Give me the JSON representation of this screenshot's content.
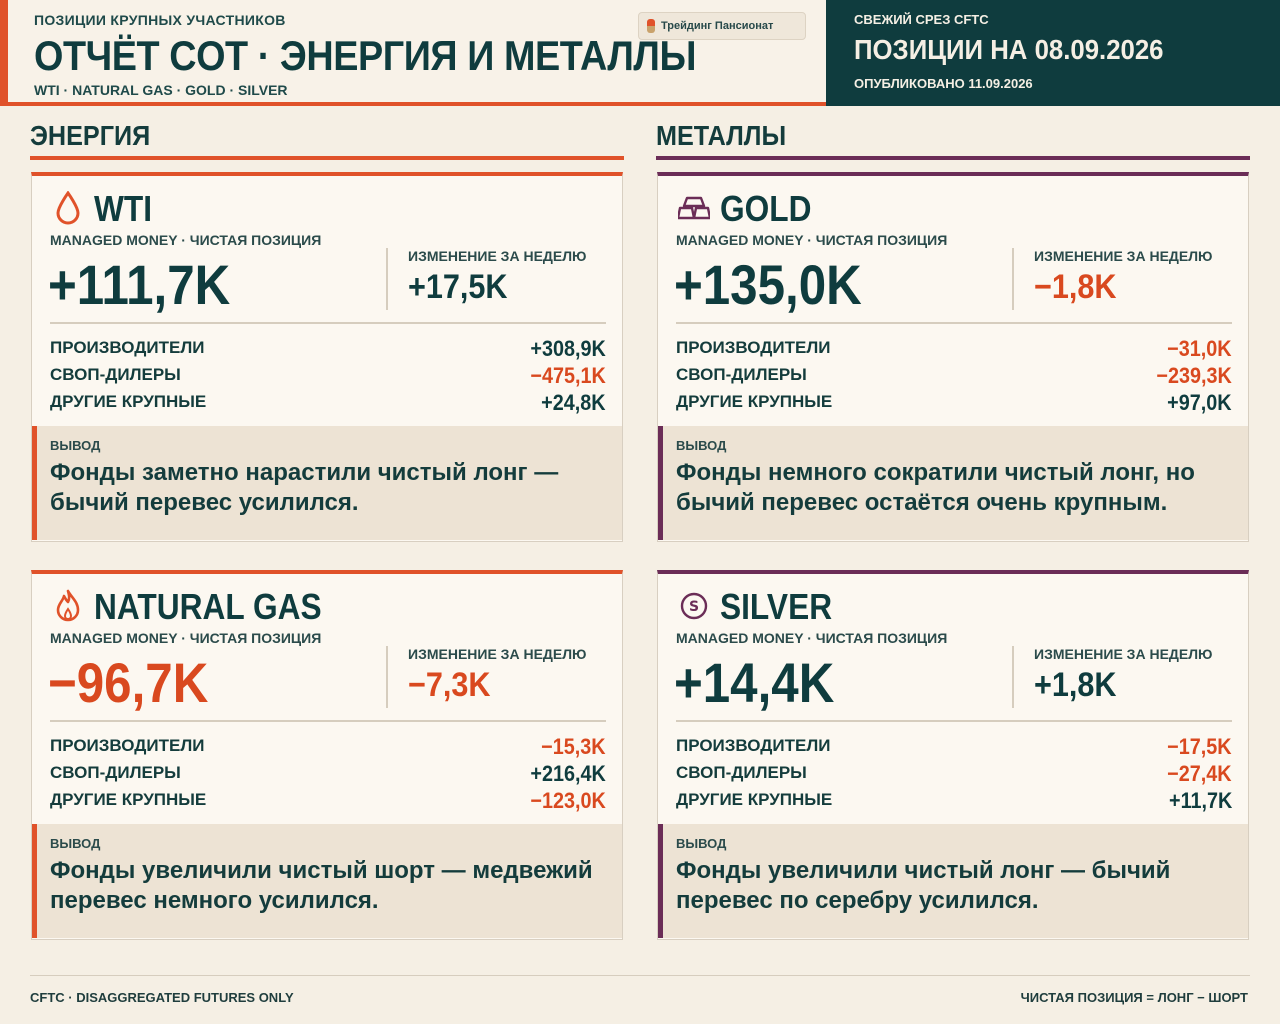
{
  "header": {
    "kicker": "ПОЗИЦИИ КРУПНЫХ УЧАСТНИКОВ",
    "title": "ОТЧЁТ COT · ЭНЕРГИЯ И МЕТАЛЛЫ",
    "subtitle": "WTI · NATURAL GAS · GOLD · SILVER",
    "brand": "Трейдинг Пансионат"
  },
  "snapshot": {
    "kicker": "СВЕЖИЙ СРЕЗ CFTC",
    "title": "ПОЗИЦИИ НА 08.09.2026",
    "published": "ОПУБЛИКОВАНО 11.09.2026"
  },
  "sections": {
    "energy": "ЭНЕРГИЯ",
    "metals": "МЕТАЛЛЫ"
  },
  "labels": {
    "managed_money": "MANAGED MONEY · ЧИСТАЯ ПОЗИЦИЯ",
    "weekly_change": "ИЗМЕНЕНИЕ ЗА НЕДЕЛЮ",
    "producers": "ПРОИЗВОДИТЕЛИ",
    "swap_dealers": "СВОП-ДИЛЕРЫ",
    "other_large": "ДРУГИЕ КРУПНЫЕ",
    "conclusion": "ВЫВОД"
  },
  "cards": {
    "wti": {
      "name": "WTI",
      "icon": "oil-drop-icon",
      "net": "+111,7K",
      "change": "+17,5K",
      "producers": "+308,9K",
      "swap_dealers": "−475,1K",
      "other_large": "+24,8K",
      "conclusion": "Фонды заметно нарастили чистый лонг — бычий перевес усилился."
    },
    "gold": {
      "name": "GOLD",
      "icon": "gold-bars-icon",
      "net": "+135,0K",
      "change": "−1,8K",
      "producers": "−31,0K",
      "swap_dealers": "−239,3K",
      "other_large": "+97,0K",
      "conclusion": "Фонды немного сократили чистый лонг, но бычий перевес остаётся очень крупным."
    },
    "natgas": {
      "name": "NATURAL GAS",
      "icon": "flame-icon",
      "net": "−96,7K",
      "change": "−7,3K",
      "producers": "−15,3K",
      "swap_dealers": "+216,4K",
      "other_large": "−123,0K",
      "conclusion": "Фонды увеличили чистый шорт — медвежий перевес немного усилился."
    },
    "silver": {
      "name": "SILVER",
      "icon": "silver-coin-icon",
      "net": "+14,4K",
      "change": "+1,8K",
      "producers": "−17,5K",
      "swap_dealers": "−27,4K",
      "other_large": "+11,7K",
      "conclusion": "Фонды увеличили чистый лонг — бычий перевес по серебру усилился."
    }
  },
  "colors": {
    "accent_energy": "#e0522a",
    "accent_metals": "#6b2d57",
    "dark_teal": "#0f3c3e",
    "negative": "#d9491f",
    "background": "#f5efe4"
  },
  "footer": {
    "left": "CFTC · DISAGGREGATED FUTURES ONLY",
    "right": "ЧИСТАЯ ПОЗИЦИЯ = ЛОНГ − ШОРТ"
  }
}
